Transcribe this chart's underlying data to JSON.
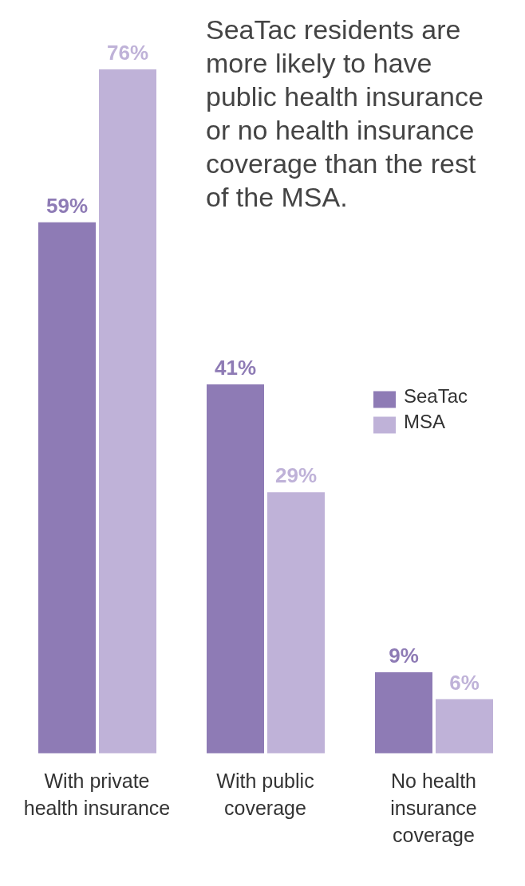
{
  "chart_data": {
    "type": "bar",
    "title": "SeaTac residents are more likely to have public health insurance or no health insurance coverage than the rest of the MSA.",
    "categories": [
      "With private health insurance",
      "With public coverage",
      "No health insurance coverage"
    ],
    "series": [
      {
        "name": "SeaTac",
        "color": "#8e7bb5",
        "values": [
          59,
          41,
          9
        ],
        "value_labels": [
          "59%",
          "41%",
          "9%"
        ]
      },
      {
        "name": "MSA",
        "color": "#bfb2d8",
        "values": [
          76,
          29,
          6
        ],
        "value_labels": [
          "76%",
          "29%",
          "6%"
        ]
      }
    ],
    "legend": "right",
    "grid": false
  }
}
